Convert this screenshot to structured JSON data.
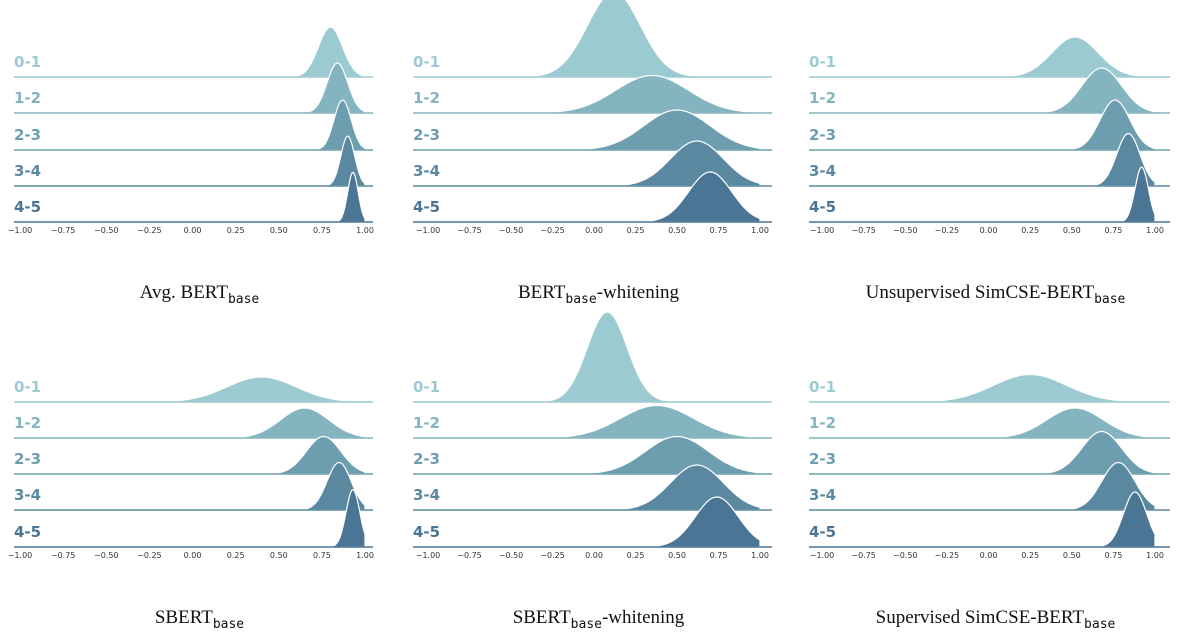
{
  "figure": {
    "row_labels": [
      "0-1",
      "1-2",
      "2-3",
      "3-4",
      "4-5"
    ],
    "row_colors": [
      "#9ccad1",
      "#84b4c0",
      "#6d9eb0",
      "#5a88a1",
      "#4b7594"
    ],
    "tick_labels": [
      "−1.00",
      "−0.75",
      "−0.50",
      "−0.25",
      "0.00",
      "0.25",
      "0.50",
      "0.75",
      "1.00"
    ]
  },
  "chart_data": [
    {
      "type": "area",
      "chart_kind": "ridgeline",
      "caption_main": "Avg. BERT",
      "caption_sub": "base",
      "caption_suffix": "",
      "xlim": [
        -1.0,
        1.0
      ],
      "x_ticks": [
        -1.0,
        -0.75,
        -0.5,
        -0.25,
        0.0,
        0.25,
        0.5,
        0.75,
        1.0
      ],
      "series": [
        {
          "name": "0-1",
          "mean": 0.8,
          "sd": 0.07,
          "amp": 1.0
        },
        {
          "name": "1-2",
          "mean": 0.84,
          "sd": 0.06,
          "amp": 1.0
        },
        {
          "name": "2-3",
          "mean": 0.87,
          "sd": 0.05,
          "amp": 1.0
        },
        {
          "name": "3-4",
          "mean": 0.9,
          "sd": 0.04,
          "amp": 1.0
        },
        {
          "name": "4-5",
          "mean": 0.93,
          "sd": 0.03,
          "amp": 1.0
        }
      ]
    },
    {
      "type": "area",
      "chart_kind": "ridgeline",
      "caption_main": "BERT",
      "caption_sub": "base",
      "caption_suffix": "-whitening",
      "xlim": [
        -1.0,
        1.0
      ],
      "x_ticks": [
        -1.0,
        -0.75,
        -0.5,
        -0.25,
        0.0,
        0.25,
        0.5,
        0.75,
        1.0
      ],
      "series": [
        {
          "name": "0-1",
          "mean": 0.12,
          "sd": 0.16,
          "amp": 1.7
        },
        {
          "name": "1-2",
          "mean": 0.35,
          "sd": 0.22,
          "amp": 0.75
        },
        {
          "name": "2-3",
          "mean": 0.5,
          "sd": 0.2,
          "amp": 0.8
        },
        {
          "name": "3-4",
          "mean": 0.62,
          "sd": 0.16,
          "amp": 0.9
        },
        {
          "name": "4-5",
          "mean": 0.7,
          "sd": 0.13,
          "amp": 1.0
        }
      ]
    },
    {
      "type": "area",
      "chart_kind": "ridgeline",
      "caption_main": "Unsupervised SimCSE-BERT",
      "caption_sub": "base",
      "caption_suffix": "",
      "xlim": [
        -1.0,
        1.0
      ],
      "x_ticks": [
        -1.0,
        -0.75,
        -0.5,
        -0.25,
        0.0,
        0.25,
        0.5,
        0.75,
        1.0
      ],
      "series": [
        {
          "name": "0-1",
          "mean": 0.52,
          "sd": 0.14,
          "amp": 0.8
        },
        {
          "name": "1-2",
          "mean": 0.68,
          "sd": 0.12,
          "amp": 0.9
        },
        {
          "name": "2-3",
          "mean": 0.76,
          "sd": 0.09,
          "amp": 1.0
        },
        {
          "name": "3-4",
          "mean": 0.84,
          "sd": 0.07,
          "amp": 1.05
        },
        {
          "name": "4-5",
          "mean": 0.92,
          "sd": 0.04,
          "amp": 1.1
        }
      ]
    },
    {
      "type": "area",
      "chart_kind": "ridgeline",
      "caption_main": "SBERT",
      "caption_sub": "base",
      "caption_suffix": "",
      "xlim": [
        -1.0,
        1.0
      ],
      "x_ticks": [
        -1.0,
        -0.75,
        -0.5,
        -0.25,
        0.0,
        0.25,
        0.5,
        0.75,
        1.0
      ],
      "series": [
        {
          "name": "0-1",
          "mean": 0.4,
          "sd": 0.2,
          "amp": 0.5
        },
        {
          "name": "1-2",
          "mean": 0.65,
          "sd": 0.14,
          "amp": 0.6
        },
        {
          "name": "2-3",
          "mean": 0.76,
          "sd": 0.1,
          "amp": 0.75
        },
        {
          "name": "3-4",
          "mean": 0.85,
          "sd": 0.07,
          "amp": 0.95
        },
        {
          "name": "4-5",
          "mean": 0.93,
          "sd": 0.04,
          "amp": 1.15
        }
      ]
    },
    {
      "type": "area",
      "chart_kind": "ridgeline",
      "caption_main": "SBERT",
      "caption_sub": "base",
      "caption_suffix": "-whitening",
      "xlim": [
        -1.0,
        1.0
      ],
      "x_ticks": [
        -1.0,
        -0.75,
        -0.5,
        -0.25,
        0.0,
        0.25,
        0.5,
        0.75,
        1.0
      ],
      "series": [
        {
          "name": "0-1",
          "mean": 0.08,
          "sd": 0.12,
          "amp": 1.8
        },
        {
          "name": "1-2",
          "mean": 0.38,
          "sd": 0.22,
          "amp": 0.65
        },
        {
          "name": "2-3",
          "mean": 0.5,
          "sd": 0.19,
          "amp": 0.75
        },
        {
          "name": "3-4",
          "mean": 0.62,
          "sd": 0.16,
          "amp": 0.9
        },
        {
          "name": "4-5",
          "mean": 0.74,
          "sd": 0.13,
          "amp": 1.0
        }
      ]
    },
    {
      "type": "area",
      "chart_kind": "ridgeline",
      "caption_main": "Supervised SimCSE-BERT",
      "caption_sub": "base",
      "caption_suffix": "",
      "xlim": [
        -1.0,
        1.0
      ],
      "x_ticks": [
        -1.0,
        -0.75,
        -0.5,
        -0.25,
        0.0,
        0.25,
        0.5,
        0.75,
        1.0
      ],
      "series": [
        {
          "name": "0-1",
          "mean": 0.25,
          "sd": 0.22,
          "amp": 0.55
        },
        {
          "name": "1-2",
          "mean": 0.52,
          "sd": 0.17,
          "amp": 0.6
        },
        {
          "name": "2-3",
          "mean": 0.68,
          "sd": 0.12,
          "amp": 0.85
        },
        {
          "name": "3-4",
          "mean": 0.78,
          "sd": 0.1,
          "amp": 0.95
        },
        {
          "name": "4-5",
          "mean": 0.88,
          "sd": 0.07,
          "amp": 1.1
        }
      ]
    }
  ]
}
